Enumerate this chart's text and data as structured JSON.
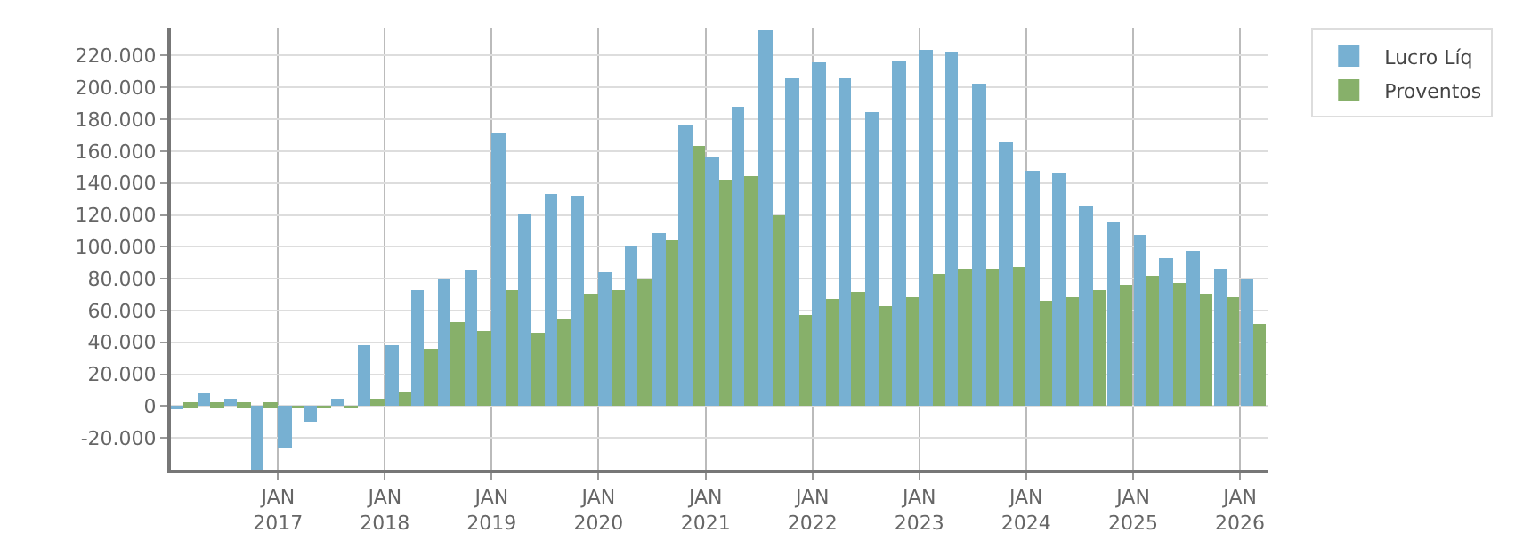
{
  "chart_data": {
    "type": "bar",
    "x": [
      "2016-02-15",
      "2016-05-15",
      "2016-08-15",
      "2016-11-15",
      "2017-02-15",
      "2017-05-15",
      "2017-08-15",
      "2017-11-15",
      "2018-02-15",
      "2018-05-15",
      "2018-08-15",
      "2018-11-15",
      "2019-02-15",
      "2019-05-15",
      "2019-08-15",
      "2019-11-15",
      "2020-02-15",
      "2020-05-15",
      "2020-08-15",
      "2020-11-15",
      "2021-02-15",
      "2021-05-15",
      "2021-08-15",
      "2021-11-15",
      "2022-02-15",
      "2022-05-15",
      "2022-08-15",
      "2022-11-15",
      "2023-02-15",
      "2023-05-15",
      "2023-08-15",
      "2023-11-15",
      "2024-02-15",
      "2024-05-15",
      "2024-08-15",
      "2024-11-15",
      "2025-02-15",
      "2025-05-15",
      "2025-08-15",
      "2025-11-15",
      "2026-02-15"
    ],
    "series": [
      {
        "name": "Lucro Líq",
        "color": "#77b0d2",
        "values": [
          -2000,
          8300,
          4200,
          -40000,
          -27100,
          -10100,
          4200,
          38600,
          38600,
          73000,
          79300,
          85600,
          171000,
          121000,
          133600,
          131500,
          84500,
          100200,
          108500,
          176300,
          156500,
          187800,
          235800,
          205600,
          216000,
          205600,
          184700,
          217000,
          223300,
          222300,
          202400,
          165900,
          148200,
          146100,
          125200,
          115800,
          107500,
          92900,
          97000,
          86600,
          79300
        ]
      },
      {
        "name": "Proventos",
        "color": "#87b06a",
        "values": [
          2000,
          2000,
          2000,
          2000,
          -500,
          -500,
          -500,
          5200,
          9400,
          36500,
          52200,
          47000,
          73000,
          45900,
          55300,
          71000,
          73000,
          79300,
          104300,
          162800,
          141900,
          144000,
          120000,
          57400,
          66800,
          72000,
          62600,
          68900,
          82400,
          86600,
          86600,
          87700,
          65700,
          67800,
          73000,
          76200,
          81400,
          77200,
          71000,
          67800,
          51100
        ]
      }
    ],
    "ylim": [
      -40000,
      237000
    ],
    "yticks": [
      {
        "value": -20000,
        "label": "-20.000"
      },
      0,
      {
        "value": 20000,
        "label": "20.000"
      },
      {
        "value": 40000,
        "label": "40.000"
      },
      {
        "value": 60000,
        "label": "60.000"
      },
      {
        "value": 80000,
        "label": "80.000"
      },
      {
        "value": 100000,
        "label": "100.000"
      },
      {
        "value": 120000,
        "label": "120.000"
      },
      {
        "value": 140000,
        "label": "140.000"
      },
      {
        "value": 160000,
        "label": "160.000"
      },
      {
        "value": 180000,
        "label": "180.000"
      },
      {
        "value": 200000,
        "label": "200.000"
      },
      {
        "value": 220000,
        "label": "220.000"
      }
    ],
    "xlim": [
      "2016-01-01",
      "2026-04-05"
    ],
    "xticks": [
      {
        "value": "2017-01-01",
        "label": "JAN\n2017"
      },
      {
        "value": "2018-01-01",
        "label": "JAN\n2018"
      },
      {
        "value": "2019-01-01",
        "label": "JAN\n2019"
      },
      {
        "value": "2020-01-01",
        "label": "JAN\n2020"
      },
      {
        "value": "2021-01-01",
        "label": "JAN\n2021"
      },
      {
        "value": "2022-01-01",
        "label": "JAN\n2022"
      },
      {
        "value": "2023-01-01",
        "label": "JAN\n2023"
      },
      {
        "value": "2024-01-01",
        "label": "JAN\n2024"
      },
      {
        "value": "2025-01-01",
        "label": "JAN\n2025"
      },
      {
        "value": "2026-01-01",
        "label": "JAN\n2026"
      }
    ],
    "grid": true,
    "legend": "top right"
  }
}
